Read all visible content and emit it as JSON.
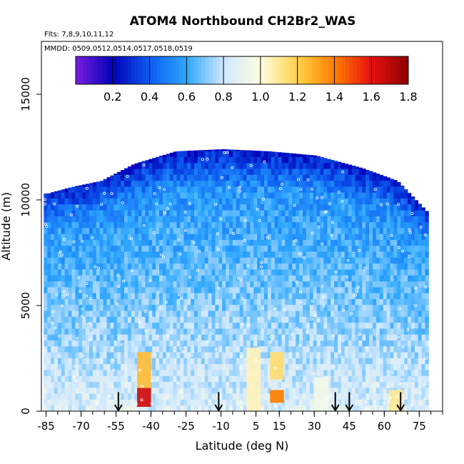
{
  "chart_data": {
    "type": "heatmap",
    "title": "ATOM4 Northbound CH2Br2_WAS",
    "subtitle_flights": "Flts: 7,8,9,10,11,12",
    "subtitle_dates": "MMDD: 0509,0512,0514,0517,0518,0519",
    "xlabel": "Latitude (deg N)",
    "ylabel": "Altitude (m)",
    "xlim": [
      -87,
      85
    ],
    "ylim": [
      0,
      17500
    ],
    "x_ticks": [
      -85,
      -70,
      -55,
      -40,
      -25,
      -10,
      5,
      15,
      30,
      45,
      60,
      75
    ],
    "x_minor_step": 5,
    "y_ticks": [
      0,
      5000,
      10000,
      15000
    ],
    "colorbar": {
      "min": 0.0,
      "max": 1.8,
      "ticks": [
        0.2,
        0.4,
        0.6,
        0.8,
        1.0,
        1.2,
        1.4,
        1.6,
        1.8
      ],
      "colors": [
        "#7a1fe0",
        "#0000b8",
        "#0c5cf0",
        "#2ea8ff",
        "#cfe8ff",
        "#fffde0",
        "#ffd24a",
        "#ff7e00",
        "#e81010",
        "#8b0000"
      ]
    },
    "arrows_latitude": [
      -54,
      -11,
      39,
      45,
      67
    ],
    "profiles": [
      {
        "lat": -85,
        "top": 10300
      },
      {
        "lat": -75,
        "top": 10600
      },
      {
        "lat": -62,
        "top": 10900
      },
      {
        "lat": -48,
        "top": 11700
      },
      {
        "lat": -30,
        "top": 12300
      },
      {
        "lat": -10,
        "top": 12400
      },
      {
        "lat": 10,
        "top": 12300
      },
      {
        "lat": 30,
        "top": 12100
      },
      {
        "lat": 50,
        "top": 11500
      },
      {
        "lat": 65,
        "top": 10900
      },
      {
        "lat": 79,
        "top": 9300
      }
    ],
    "hotspots": [
      {
        "lat": -43,
        "alt_min": 200,
        "alt_max": 1100,
        "value": 1.65
      },
      {
        "lat": -43,
        "alt_min": 1100,
        "alt_max": 2800,
        "value": 1.25
      },
      {
        "lat": 14,
        "alt_min": 400,
        "alt_max": 1000,
        "value": 1.4
      },
      {
        "lat": 14,
        "alt_min": 1500,
        "alt_max": 2800,
        "value": 1.15
      },
      {
        "lat": 4,
        "alt_min": 0,
        "alt_max": 3000,
        "value": 1.05
      },
      {
        "lat": 65,
        "alt_min": 0,
        "alt_max": 1000,
        "value": 1.1
      },
      {
        "lat": 33,
        "alt_min": 0,
        "alt_max": 1600,
        "value": 0.95
      }
    ]
  }
}
